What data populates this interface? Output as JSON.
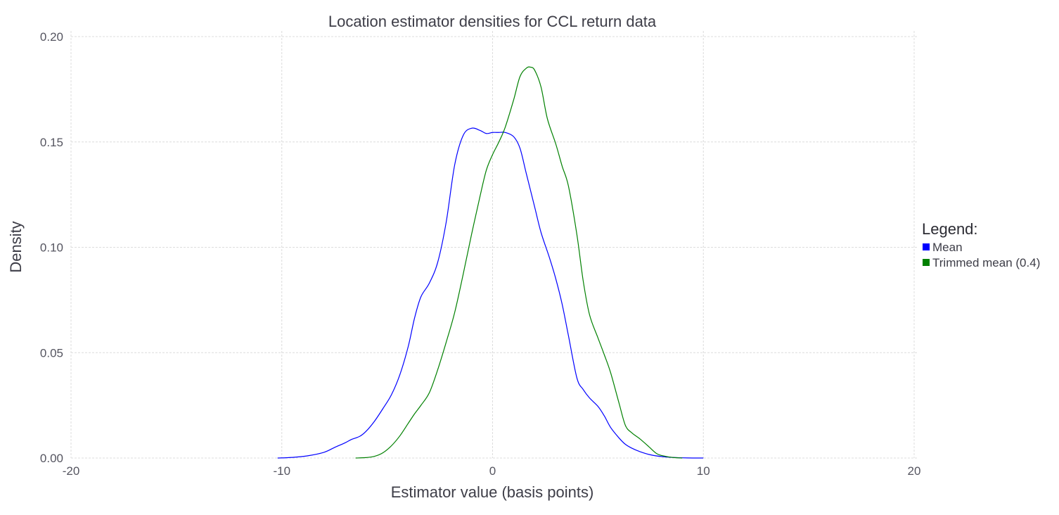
{
  "chart_data": {
    "type": "line",
    "title": "Location estimator densities for CCL return data",
    "xlabel": "Estimator value (basis points)",
    "ylabel": "Density",
    "xlim": [
      -20,
      20
    ],
    "ylim": [
      0,
      0.2
    ],
    "xticks": [
      -20,
      -10,
      0,
      10,
      20
    ],
    "xtick_labels": [
      "-20",
      "-10",
      "0",
      "10",
      "20"
    ],
    "yticks": [
      0,
      0.05,
      0.1,
      0.15,
      0.2
    ],
    "ytick_labels": [
      "0.00",
      "0.05",
      "0.10",
      "0.15",
      "0.20"
    ],
    "grid": true,
    "legend": {
      "title": "Legend:",
      "placement": "right",
      "entries": [
        "Mean",
        "Trimmed mean (0.4)"
      ]
    },
    "series": [
      {
        "name": "Mean",
        "color": "#0000ff",
        "x": [
          -10.2,
          -9.5,
          -8.8,
          -8.0,
          -7.5,
          -7.0,
          -6.7,
          -6.3,
          -6.0,
          -5.6,
          -5.2,
          -4.8,
          -4.4,
          -4.0,
          -3.7,
          -3.4,
          -3.0,
          -2.6,
          -2.2,
          -1.8,
          -1.4,
          -1.0,
          -0.6,
          -0.3,
          0.0,
          0.3,
          0.6,
          1.0,
          1.3,
          1.6,
          2.0,
          2.3,
          2.7,
          3.0,
          3.3,
          3.6,
          4.0,
          4.3,
          4.6,
          5.0,
          5.3,
          5.6,
          6.0,
          6.3,
          6.6,
          7.0,
          7.5,
          8.0,
          8.5,
          9.0,
          9.5,
          10.0
        ],
        "y": [
          0.0,
          0.0003,
          0.001,
          0.0027,
          0.005,
          0.0072,
          0.0088,
          0.0103,
          0.0127,
          0.0175,
          0.0235,
          0.03,
          0.0395,
          0.053,
          0.0665,
          0.0765,
          0.083,
          0.093,
          0.112,
          0.139,
          0.153,
          0.1565,
          0.1555,
          0.154,
          0.1545,
          0.1545,
          0.1545,
          0.1525,
          0.147,
          0.135,
          0.119,
          0.107,
          0.095,
          0.085,
          0.073,
          0.058,
          0.038,
          0.0325,
          0.0285,
          0.0245,
          0.02,
          0.0145,
          0.0095,
          0.0065,
          0.0047,
          0.003,
          0.0015,
          0.0007,
          0.0003,
          0.0001,
          0.0,
          0.0
        ]
      },
      {
        "name": "Trimmed mean (0.4)",
        "color": "#008000",
        "x": [
          -6.5,
          -6.0,
          -5.6,
          -5.2,
          -4.8,
          -4.4,
          -4.0,
          -3.7,
          -3.4,
          -3.0,
          -2.6,
          -2.2,
          -1.8,
          -1.4,
          -1.0,
          -0.6,
          -0.3,
          0.0,
          0.3,
          0.6,
          1.0,
          1.3,
          1.6,
          1.8,
          2.0,
          2.3,
          2.6,
          3.0,
          3.3,
          3.6,
          4.0,
          4.3,
          4.6,
          5.0,
          5.3,
          5.6,
          6.0,
          6.3,
          6.6,
          7.0,
          7.4,
          7.8,
          8.2,
          8.6,
          9.0
        ],
        "y": [
          0.0,
          0.0002,
          0.0008,
          0.0025,
          0.0058,
          0.0105,
          0.0165,
          0.021,
          0.025,
          0.031,
          0.042,
          0.055,
          0.069,
          0.087,
          0.106,
          0.124,
          0.1365,
          0.144,
          0.15,
          0.157,
          0.17,
          0.181,
          0.185,
          0.1855,
          0.184,
          0.176,
          0.161,
          0.149,
          0.1385,
          0.129,
          0.106,
          0.084,
          0.068,
          0.057,
          0.049,
          0.0405,
          0.026,
          0.0155,
          0.012,
          0.009,
          0.0055,
          0.002,
          0.0008,
          0.0002,
          0.0
        ]
      }
    ]
  }
}
